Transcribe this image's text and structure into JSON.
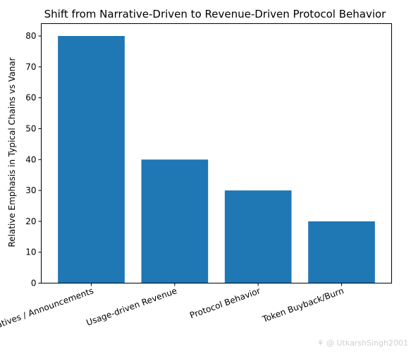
{
  "chart_data": {
    "type": "bar",
    "title": "Shift from Narrative-Driven to Revenue-Driven Protocol Behavior",
    "xlabel": "",
    "ylabel": "Relative Emphasis in Typical Chains vs Vanar",
    "categories": [
      "Narratives / Announcements",
      "Usage-driven Revenue",
      "Protocol Behavior",
      "Token Buyback/Burn"
    ],
    "values": [
      80,
      40,
      30,
      20
    ],
    "ylim": [
      0,
      84
    ],
    "yticks": [
      0,
      10,
      20,
      30,
      40,
      50,
      60,
      70,
      80
    ],
    "grid": false,
    "bar_color": "#1f77b4"
  },
  "watermark": {
    "text": "@ UtkarshSingh2001"
  }
}
